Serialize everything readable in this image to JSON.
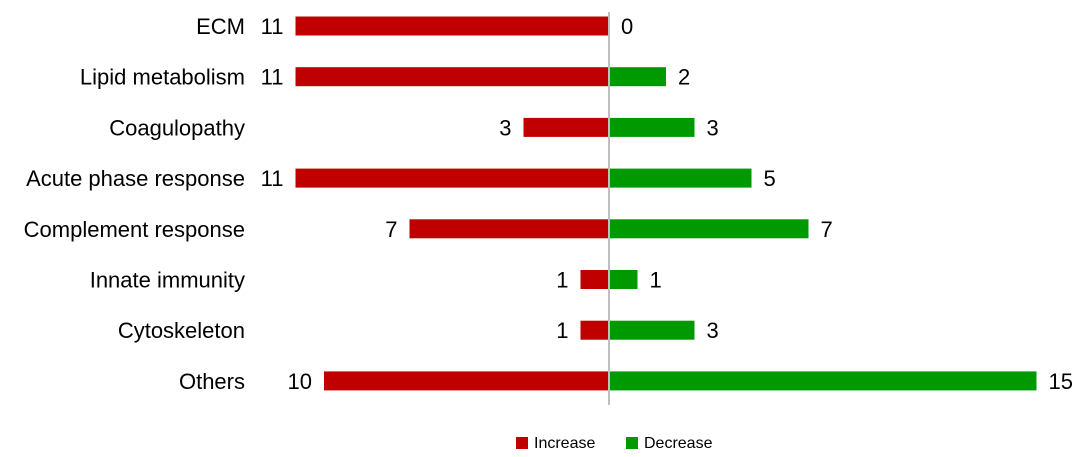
{
  "chart_data": {
    "type": "bar",
    "orientation": "horizontal-diverging",
    "title": "",
    "xlabel": "",
    "ylabel": "",
    "categories": [
      "ECM",
      "Lipid metabolism",
      "Coagulopathy",
      "Acute phase response",
      "Complement response",
      "Innate immunity",
      "Cytoskeleton",
      "Others"
    ],
    "series": [
      {
        "name": "Increase",
        "direction": "left",
        "color": "#c00000",
        "values": [
          11,
          11,
          3,
          11,
          7,
          1,
          1,
          10
        ]
      },
      {
        "name": "Decrease",
        "direction": "right",
        "color": "#009900",
        "values": [
          0,
          2,
          3,
          5,
          7,
          1,
          3,
          15
        ]
      }
    ],
    "grid": false,
    "legend_position": "bottom"
  }
}
